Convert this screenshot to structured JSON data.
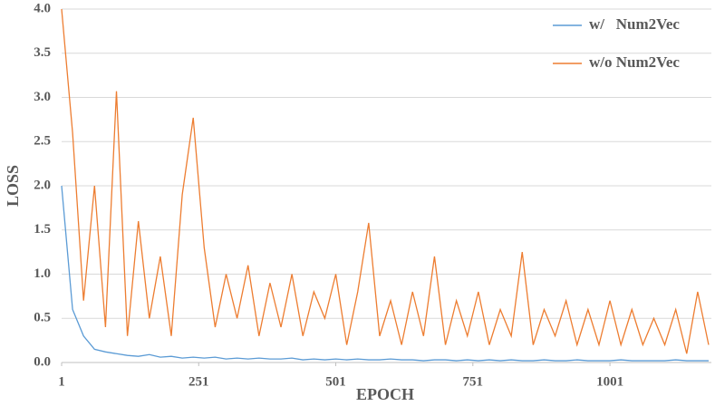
{
  "chart_data": {
    "type": "line",
    "y_label": "LOSS",
    "x_label": "EPOCH",
    "x": [
      1,
      21,
      41,
      61,
      81,
      101,
      121,
      141,
      161,
      181,
      201,
      221,
      241,
      261,
      281,
      301,
      321,
      341,
      361,
      381,
      401,
      421,
      441,
      461,
      481,
      501,
      521,
      541,
      561,
      581,
      601,
      621,
      641,
      661,
      681,
      701,
      721,
      741,
      761,
      781,
      801,
      821,
      841,
      861,
      881,
      901,
      921,
      941,
      961,
      981,
      1001,
      1021,
      1041,
      1061,
      1081,
      1101,
      1121,
      1141,
      1161,
      1181
    ],
    "series": [
      {
        "name": "w/   Num2Vec",
        "color": "#5b9bd5",
        "values": [
          2.0,
          0.6,
          0.3,
          0.15,
          0.12,
          0.1,
          0.08,
          0.07,
          0.09,
          0.06,
          0.07,
          0.05,
          0.06,
          0.05,
          0.06,
          0.04,
          0.05,
          0.04,
          0.05,
          0.04,
          0.04,
          0.05,
          0.03,
          0.04,
          0.03,
          0.04,
          0.03,
          0.04,
          0.03,
          0.03,
          0.04,
          0.03,
          0.03,
          0.02,
          0.03,
          0.03,
          0.02,
          0.03,
          0.02,
          0.03,
          0.02,
          0.03,
          0.02,
          0.02,
          0.03,
          0.02,
          0.02,
          0.03,
          0.02,
          0.02,
          0.02,
          0.03,
          0.02,
          0.02,
          0.02,
          0.02,
          0.03,
          0.02,
          0.02,
          0.02
        ]
      },
      {
        "name": "w/o Num2Vec",
        "color": "#ed7d31",
        "values": [
          4.0,
          2.6,
          0.7,
          2.0,
          0.4,
          3.07,
          0.3,
          1.6,
          0.5,
          1.2,
          0.3,
          1.9,
          2.77,
          1.3,
          0.4,
          1.0,
          0.5,
          1.1,
          0.3,
          0.9,
          0.4,
          1.0,
          0.3,
          0.8,
          0.5,
          1.0,
          0.2,
          0.8,
          1.58,
          0.3,
          0.7,
          0.2,
          0.8,
          0.3,
          1.2,
          0.2,
          0.7,
          0.3,
          0.8,
          0.2,
          0.6,
          0.3,
          1.25,
          0.2,
          0.6,
          0.3,
          0.7,
          0.2,
          0.6,
          0.2,
          0.7,
          0.2,
          0.6,
          0.2,
          0.5,
          0.2,
          0.6,
          0.1,
          0.8,
          0.2
        ]
      }
    ],
    "xlim": [
      1,
      1186
    ],
    "xticks": [
      1,
      251,
      501,
      751,
      1001
    ],
    "ylim": [
      0,
      4
    ],
    "yticks": [
      {
        "value": 0,
        "label": "0.0"
      },
      0.5,
      {
        "value": 1,
        "label": "1.0"
      },
      1.5,
      {
        "value": 2,
        "label": "2.0"
      },
      2.5,
      {
        "value": 3,
        "label": "3.0"
      },
      3.5,
      {
        "value": 4,
        "label": "4.0"
      }
    ],
    "grid": true,
    "legend": "top-right"
  }
}
